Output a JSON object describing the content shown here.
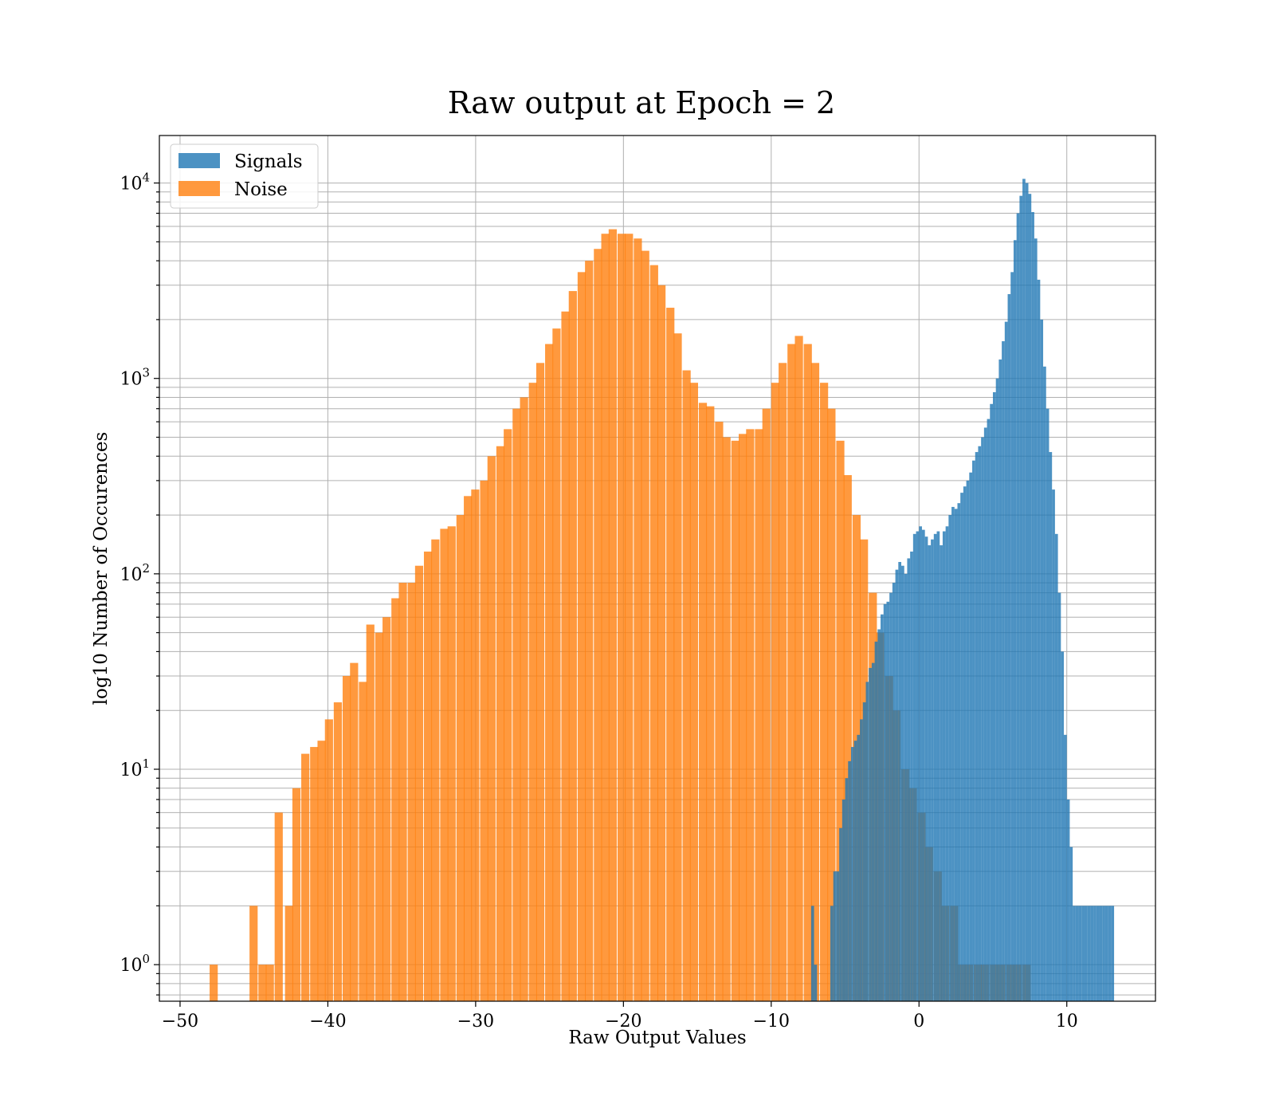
{
  "chart_data": {
    "type": "bar",
    "title": "Raw output at Epoch = 2",
    "xlabel": "Raw Output Values",
    "ylabel": "log10 Number of Occurences",
    "xlim": [
      -51.4,
      16.0
    ],
    "ylim": [
      0.65,
      17500
    ],
    "yscale": "log",
    "grid": true,
    "legend_position": "top-left",
    "x_ticks": [
      {
        "value": -50,
        "label": "−50"
      },
      {
        "value": -40,
        "label": "−40"
      },
      {
        "value": -30,
        "label": "−30"
      },
      {
        "value": -20,
        "label": "−20"
      },
      {
        "value": -10,
        "label": "−10"
      },
      {
        "value": 0,
        "label": "0"
      },
      {
        "value": 10,
        "label": "10"
      }
    ],
    "y_ticks": [
      {
        "value": 1,
        "base": "10",
        "exp": "0"
      },
      {
        "value": 10,
        "base": "10",
        "exp": "1"
      },
      {
        "value": 100,
        "base": "10",
        "exp": "2"
      },
      {
        "value": 1000,
        "base": "10",
        "exp": "3"
      },
      {
        "value": 10000,
        "base": "10",
        "exp": "4"
      }
    ],
    "series": [
      {
        "name": "Signals",
        "color": "#1f77b4",
        "opacity": 0.8,
        "x": [
          -7.3,
          -7.1,
          -6.0,
          -5.8,
          -5.6,
          -5.4,
          -5.2,
          -5.0,
          -4.8,
          -4.6,
          -4.4,
          -4.2,
          -4.0,
          -3.8,
          -3.6,
          -3.4,
          -3.2,
          -3.0,
          -2.8,
          -2.6,
          -2.4,
          -2.2,
          -2.0,
          -1.8,
          -1.6,
          -1.4,
          -1.2,
          -1.0,
          -0.8,
          -0.6,
          -0.4,
          -0.2,
          0.0,
          0.2,
          0.4,
          0.6,
          0.8,
          1.0,
          1.2,
          1.4,
          1.6,
          1.8,
          2.0,
          2.2,
          2.4,
          2.6,
          2.8,
          3.0,
          3.2,
          3.4,
          3.6,
          3.8,
          4.0,
          4.2,
          4.4,
          4.6,
          4.8,
          5.0,
          5.2,
          5.4,
          5.6,
          5.8,
          6.0,
          6.2,
          6.4,
          6.6,
          6.8,
          7.0,
          7.2,
          7.4,
          7.6,
          7.8,
          8.0,
          8.2,
          8.4,
          8.6,
          8.8,
          9.0,
          9.2,
          9.4,
          9.6,
          9.8,
          10.0,
          10.2,
          10.4,
          10.6,
          10.8,
          11.0,
          11.2,
          11.4,
          11.6,
          11.8,
          12.0,
          12.2,
          12.4,
          12.6,
          12.8,
          13.0
        ],
        "values": [
          2,
          1,
          2,
          3,
          3,
          5,
          7,
          9,
          11,
          13,
          14,
          15,
          18,
          22,
          28,
          33,
          35,
          45,
          52,
          62,
          70,
          72,
          80,
          90,
          105,
          115,
          110,
          100,
          120,
          130,
          160,
          165,
          175,
          168,
          155,
          140,
          150,
          160,
          165,
          140,
          165,
          175,
          200,
          220,
          215,
          230,
          260,
          280,
          300,
          330,
          380,
          420,
          450,
          500,
          560,
          620,
          740,
          850,
          1000,
          1250,
          1550,
          1950,
          2700,
          3500,
          5100,
          7000,
          8600,
          10500,
          10000,
          8800,
          7100,
          5200,
          3200,
          2000,
          1150,
          700,
          420,
          270,
          160,
          80,
          40,
          15,
          7,
          4,
          2,
          2,
          2,
          2,
          2,
          2,
          2,
          2,
          2,
          2,
          2,
          2,
          2,
          2
        ],
        "bin_width": 0.2
      },
      {
        "name": "Noise",
        "color": "#ff7f0e",
        "opacity": 0.8,
        "x": [
          -48.0,
          -45.3,
          -44.7,
          -44.2,
          -43.6,
          -42.9,
          -42.4,
          -41.8,
          -41.2,
          -40.7,
          -40.2,
          -39.6,
          -39.0,
          -38.5,
          -37.9,
          -37.4,
          -36.8,
          -36.3,
          -35.7,
          -35.2,
          -34.6,
          -34.1,
          -33.5,
          -33.0,
          -32.4,
          -31.9,
          -31.3,
          -30.8,
          -30.3,
          -29.7,
          -29.2,
          -28.6,
          -28.1,
          -27.5,
          -27.0,
          -26.4,
          -25.9,
          -25.3,
          -24.8,
          -24.2,
          -23.7,
          -23.1,
          -22.6,
          -22.0,
          -21.5,
          -21.0,
          -20.4,
          -19.9,
          -19.3,
          -18.8,
          -18.2,
          -17.7,
          -17.1,
          -16.6,
          -16.0,
          -15.5,
          -14.9,
          -14.4,
          -13.8,
          -13.3,
          -12.7,
          -12.2,
          -11.7,
          -11.1,
          -10.6,
          -10.0,
          -9.5,
          -8.9,
          -8.4,
          -7.8,
          -7.3,
          -6.7,
          -6.2,
          -5.6,
          -5.1,
          -4.5,
          -4.0,
          -3.4,
          -2.9,
          -2.3,
          -1.8,
          -1.2,
          -0.7,
          -0.1,
          0.4,
          1.0,
          1.5,
          2.1,
          2.6,
          3.1,
          3.7,
          4.2,
          4.8,
          5.3,
          5.9,
          6.4,
          7.0
        ],
        "values": [
          1,
          2,
          1,
          1,
          6,
          2,
          8,
          12,
          13,
          14,
          18,
          22,
          30,
          35,
          28,
          55,
          50,
          60,
          75,
          90,
          90,
          110,
          130,
          150,
          170,
          175,
          200,
          250,
          270,
          300,
          400,
          450,
          550,
          700,
          800,
          950,
          1200,
          1500,
          1800,
          2200,
          2800,
          3500,
          4000,
          4600,
          5500,
          5800,
          5500,
          5500,
          5200,
          4500,
          3800,
          3000,
          2300,
          1700,
          1100,
          950,
          750,
          720,
          600,
          500,
          480,
          520,
          550,
          550,
          700,
          950,
          1200,
          1500,
          1650,
          1500,
          1200,
          950,
          700,
          480,
          320,
          200,
          150,
          80,
          50,
          30,
          20,
          10,
          8,
          6,
          4,
          3,
          2,
          2,
          1,
          1,
          1,
          1,
          1,
          1,
          1,
          1,
          1
        ],
        "bin_width": 0.55
      }
    ]
  }
}
